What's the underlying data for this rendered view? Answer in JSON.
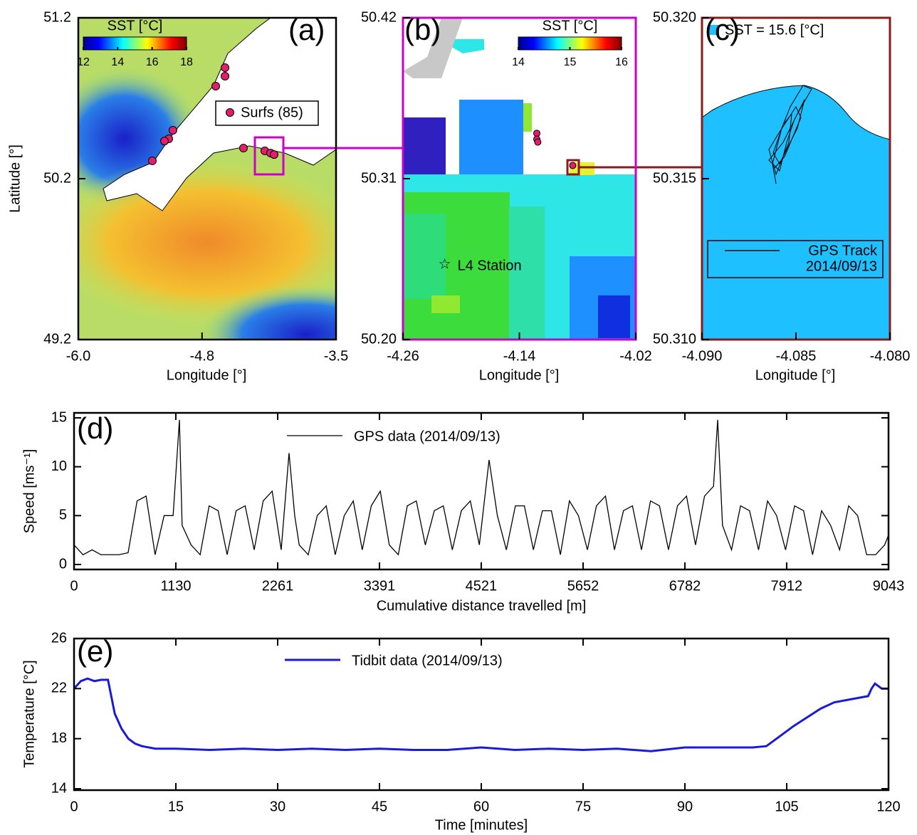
{
  "chart_data": [
    {
      "type": "map",
      "label": "(a)",
      "xlabel": "Longitude [°]",
      "ylabel": "Latitude [°]",
      "xlim": [
        -6.0,
        -3.5
      ],
      "xticks": [
        {
          "value": -6,
          "label": "-6.0"
        },
        -4.8,
        -3.5
      ],
      "ylim": [
        49.2,
        51.2
      ],
      "yticks": [
        49.2,
        50.2,
        51.2
      ],
      "colorbar": {
        "title": "SST [°C]",
        "lim": [
          12,
          18
        ],
        "ticks": [
          12,
          14,
          16,
          18
        ]
      },
      "series": [
        {
          "name": "Surfs (85)",
          "color": "#e0206a",
          "x": [
            -4.577,
            -4.577,
            -4.667,
            -5.082,
            -5.123,
            -5.164,
            -5.282,
            -4.398,
            -4.191,
            -4.135,
            -4.101
          ],
          "y": [
            50.89,
            50.837,
            50.775,
            50.501,
            50.448,
            50.434,
            50.311,
            50.39,
            50.373,
            50.359,
            50.35
          ]
        }
      ]
    },
    {
      "type": "map",
      "label": "(b)",
      "xlabel": "Longitude [°]",
      "xlim": [
        -4.26,
        -4.02
      ],
      "xticks": [
        -4.26,
        -4.14,
        -4.02
      ],
      "ylim": [
        50.2,
        50.42
      ],
      "yticks": [
        {
          "value": 50.2,
          "label": "50.20"
        },
        50.31,
        50.42
      ],
      "colorbar": {
        "title": "SST [°C]",
        "lim": [
          14,
          16
        ],
        "ticks": [
          14,
          15,
          16
        ]
      },
      "points": {
        "color": "#e0206a",
        "x": [
          -4.122,
          -4.122,
          -4.121,
          -4.085
        ],
        "y": [
          50.341,
          50.337,
          50.335,
          50.319
        ]
      },
      "annotations": [
        {
          "text": "L4 Station",
          "x": -4.217,
          "y": 50.251
        }
      ]
    },
    {
      "type": "map",
      "label": "(c)",
      "xlabel": "Longitude [°]",
      "xlim": [
        -4.09,
        -4.08
      ],
      "xticks": [
        {
          "value": -4.09,
          "label": "-4.090"
        },
        -4.085,
        {
          "value": -4.08,
          "label": "-4.080"
        }
      ],
      "ylim": [
        50.31,
        50.32
      ],
      "yticks": [
        {
          "value": 50.31,
          "label": "50.310"
        },
        50.315,
        {
          "value": 50.32,
          "label": "50.320"
        }
      ],
      "sst_legend": "SST = 15.6 [°C]",
      "sst_color": "#1ec0ff",
      "track_legend": [
        "GPS Track",
        "2014/09/13"
      ]
    },
    {
      "type": "line",
      "label": "(d)",
      "xlabel": "Cumulative distance travelled [m]",
      "ylabel": "Speed [ms⁻¹]",
      "xlim": [
        0,
        9043
      ],
      "xticks": [
        0,
        1130,
        2261,
        3391,
        4521,
        5652,
        6782,
        7912,
        9043
      ],
      "ylim": [
        0,
        15
      ],
      "yticks": [
        0,
        5,
        10,
        15
      ],
      "x": [
        0,
        100,
        200,
        300,
        400,
        500,
        600,
        700,
        800,
        900,
        1000,
        1100,
        1170,
        1200,
        1300,
        1400,
        1500,
        1600,
        1700,
        1800,
        1900,
        2000,
        2100,
        2200,
        2300,
        2387,
        2450,
        2500,
        2600,
        2700,
        2800,
        2900,
        3000,
        3100,
        3200,
        3300,
        3400,
        3500,
        3600,
        3700,
        3800,
        3900,
        4000,
        4100,
        4200,
        4300,
        4400,
        4500,
        4608,
        4700,
        4800,
        4900,
        5000,
        5100,
        5200,
        5300,
        5400,
        5500,
        5600,
        5700,
        5800,
        5900,
        6000,
        6100,
        6200,
        6300,
        6400,
        6500,
        6600,
        6700,
        6800,
        6900,
        7000,
        7100,
        7146,
        7200,
        7300,
        7400,
        7500,
        7600,
        7700,
        7800,
        7900,
        8000,
        8100,
        8200,
        8300,
        8400,
        8500,
        8600,
        8700,
        8800,
        8900,
        9000,
        9043
      ],
      "series": [
        {
          "name": "GPS data (2014/09/13)",
          "color": "#000000",
          "values": [
            2,
            1,
            1.5,
            1,
            1,
            1,
            1.2,
            6.5,
            7,
            1,
            5,
            5,
            14.8,
            4,
            2,
            1,
            6,
            5.5,
            1,
            5.5,
            6,
            1.5,
            6.5,
            7.5,
            1.5,
            11.4,
            5,
            2,
            1,
            5,
            6,
            1,
            5,
            6.5,
            1.5,
            6,
            7.5,
            2,
            1,
            6,
            6.5,
            2,
            5.5,
            6,
            1.5,
            5.5,
            6.5,
            2,
            10.7,
            5,
            1.5,
            6,
            6,
            1.5,
            5.5,
            5.5,
            1,
            6.5,
            5,
            1.5,
            6,
            7,
            1.5,
            5.5,
            6,
            1.5,
            6.5,
            6,
            1.5,
            6,
            7,
            2,
            7,
            8,
            14.8,
            4,
            1.5,
            6,
            5.5,
            1.5,
            6.5,
            5,
            1.5,
            6,
            5.5,
            1,
            5.5,
            4,
            1.5,
            6,
            5,
            1,
            1,
            2,
            3
          ]
        }
      ]
    },
    {
      "type": "line",
      "label": "(e)",
      "xlabel": "Time [minutes]",
      "ylabel": "Temperature [°C]",
      "xlim": [
        0,
        120
      ],
      "xticks": [
        0,
        15,
        30,
        45,
        60,
        75,
        90,
        105,
        120
      ],
      "ylim": [
        14,
        26
      ],
      "yticks": [
        14,
        18,
        22,
        26
      ],
      "x": [
        0,
        1,
        2,
        3,
        4,
        5,
        6,
        7,
        8,
        9,
        10,
        12,
        15,
        20,
        25,
        30,
        35,
        40,
        45,
        50,
        55,
        60,
        65,
        70,
        75,
        80,
        85,
        90,
        95,
        100,
        102,
        104,
        106,
        108,
        110,
        112,
        114,
        116,
        117,
        117.5,
        118,
        119,
        120
      ],
      "series": [
        {
          "name": "Tidbit data (2014/09/13)",
          "color": "#1a1adb",
          "values": [
            22,
            22.6,
            22.8,
            22.6,
            22.7,
            22.7,
            20,
            18.8,
            18,
            17.6,
            17.4,
            17.2,
            17.2,
            17.1,
            17.2,
            17.1,
            17.2,
            17.1,
            17.2,
            17.1,
            17.1,
            17.3,
            17.1,
            17.2,
            17.1,
            17.2,
            17,
            17.3,
            17.3,
            17.3,
            17.4,
            18.2,
            19,
            19.7,
            20.4,
            20.9,
            21.1,
            21.3,
            21.4,
            22,
            22.4,
            22,
            22
          ]
        }
      ]
    }
  ]
}
